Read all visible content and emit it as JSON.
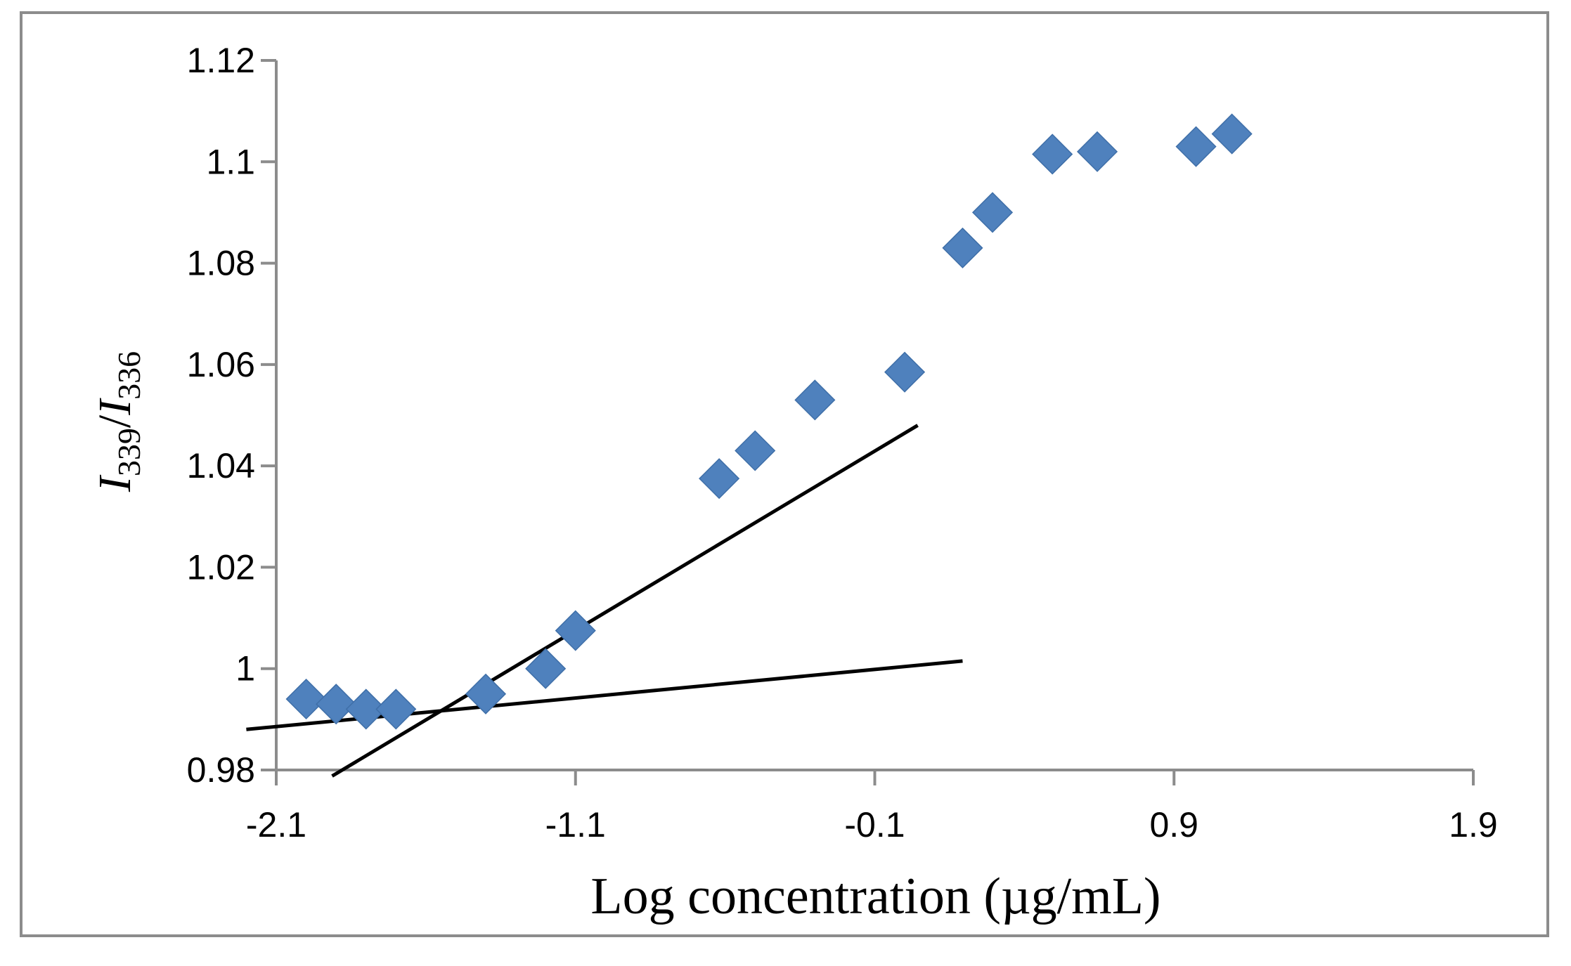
{
  "chart_data": {
    "type": "scatter",
    "title": "",
    "xlabel": "Log concentration (µg/mL)",
    "ylabel": {
      "var1": "I",
      "sub1": "339",
      "slash": "/",
      "var2": "I",
      "sub2": "336"
    },
    "xlim": [
      -2.1,
      1.9
    ],
    "ylim": [
      0.98,
      1.12
    ],
    "x_ticks": [
      -2.1,
      -1.1,
      -0.1,
      0.9,
      1.9
    ],
    "x_tick_labels": [
      "-2.1",
      "-1.1",
      "-0.1",
      "0.9",
      "1.9"
    ],
    "y_ticks": [
      0.98,
      1.0,
      1.02,
      1.04,
      1.06,
      1.08,
      1.1,
      1.12
    ],
    "y_tick_labels": [
      "0.98",
      "1",
      "1.02",
      "1.04",
      "1.06",
      "1.08",
      "1.1",
      "1.12"
    ],
    "grid": false,
    "legend": "none",
    "marker_color": "#4f81bd",
    "series": [
      {
        "name": "I339/I336",
        "marker": "diamond",
        "points": [
          {
            "x": -2.0,
            "y": 0.994
          },
          {
            "x": -1.9,
            "y": 0.993
          },
          {
            "x": -1.8,
            "y": 0.992
          },
          {
            "x": -1.7,
            "y": 0.992
          },
          {
            "x": -1.4,
            "y": 0.995
          },
          {
            "x": -1.2,
            "y": 1.0
          },
          {
            "x": -1.1,
            "y": 1.0075
          },
          {
            "x": -0.62,
            "y": 1.0375
          },
          {
            "x": -0.5,
            "y": 1.043
          },
          {
            "x": -0.3,
            "y": 1.053
          },
          {
            "x": 0.0,
            "y": 1.0585
          },
          {
            "x": 0.1935,
            "y": 1.083
          },
          {
            "x": 0.2935,
            "y": 1.09
          },
          {
            "x": 0.4935,
            "y": 1.1015
          },
          {
            "x": 0.6435,
            "y": 1.102
          },
          {
            "x": 0.9735,
            "y": 1.103
          },
          {
            "x": 1.0935,
            "y": 1.1055
          }
        ]
      }
    ],
    "lines": [
      {
        "name": "baseline-fit",
        "x": [
          -2.2,
          0.1935
        ],
        "y": [
          0.988,
          1.0015
        ]
      },
      {
        "name": "transition-fit",
        "x": [
          -1.9133,
          0.0435
        ],
        "y": [
          0.9788,
          1.048
        ]
      }
    ]
  }
}
